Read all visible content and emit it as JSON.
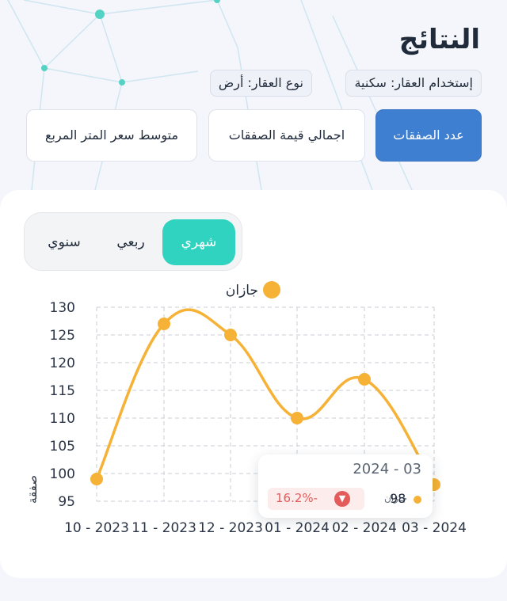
{
  "header": {
    "title": "النتائج",
    "tags": [
      "إستخدام العقار: سكنية",
      "نوع العقار: أرض"
    ]
  },
  "metrics": [
    {
      "label": "عدد الصفقات",
      "active": true
    },
    {
      "label": "اجمالي قيمة الصفقات",
      "active": false
    },
    {
      "label": "متوسط سعر المتر المربع",
      "active": false
    }
  ],
  "period": {
    "options": [
      "شهري",
      "ربعي",
      "سنوي"
    ],
    "selected": "شهري"
  },
  "tooltip": {
    "date": "2024 - 03",
    "series": "جازان",
    "value": "98",
    "change": "16.2%-",
    "change_icon": "chevron-down-icon"
  },
  "colors": {
    "accent_blue": "#3f7fd1",
    "accent_teal": "#2fd3c0",
    "series_orange": "#f5b236",
    "negative_red": "#e45b5b"
  },
  "chart_data": {
    "type": "line",
    "categories": [
      "10 - 2023",
      "11 - 2023",
      "12 - 2023",
      "01 - 2024",
      "02 - 2024",
      "03 - 2024"
    ],
    "series": [
      {
        "name": "جازان",
        "values": [
          99,
          127,
          125,
          110,
          117,
          98
        ]
      }
    ],
    "ylabel": "صفقة",
    "ylim": [
      95,
      130
    ],
    "yticks": [
      95,
      100,
      105,
      110,
      115,
      120,
      125,
      130
    ],
    "grid": true,
    "legend": "top-center"
  }
}
